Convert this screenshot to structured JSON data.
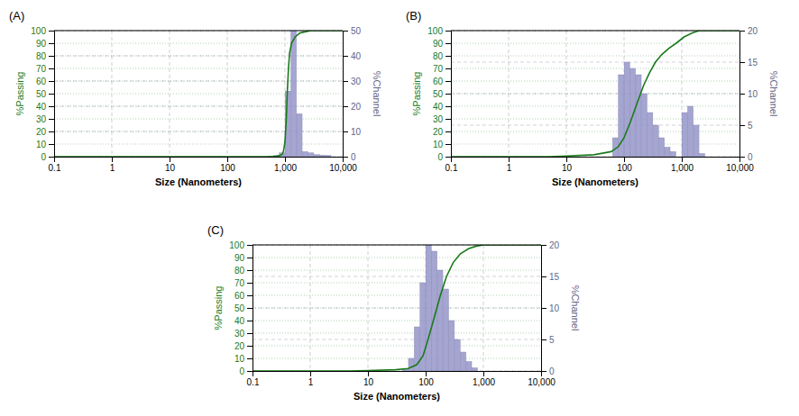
{
  "chart_data": [
    {
      "type": "bar",
      "title": "(A)",
      "xlabel": "Size (Nanometers)",
      "ylabel": "%Passing",
      "y2label": "%Channel",
      "log": "x",
      "grid": true,
      "xlim": [
        0.1,
        10000
      ],
      "xticks": [
        0.1,
        1,
        10,
        100,
        {
          "value": 1000,
          "label": "1,000"
        },
        {
          "value": 10000,
          "label": "10,000"
        }
      ],
      "ylim": [
        0,
        100
      ],
      "yticks": [
        0,
        10,
        20,
        30,
        40,
        50,
        60,
        70,
        80,
        90,
        100
      ],
      "y2lim": [
        0,
        50
      ],
      "y2ticks": [
        0,
        10,
        20,
        30,
        40,
        50
      ],
      "series": [
        {
          "type": "bar",
          "axis": "y2",
          "color": "#9999cc",
          "x": [
            562.341325,
            707.945784,
            891.250938,
            1122.018454,
            1412.537545,
            1778.27941,
            2238.721139,
            2818.382931,
            3548.133892,
            4466.835922,
            5623.413252
          ],
          "values": [
            0.3,
            0.5,
            1.5,
            26,
            50,
            17,
            2.0,
            1.5,
            0.8,
            0.6,
            0.5
          ]
        },
        {
          "type": "line",
          "color": "#1a7a1a",
          "x": [
            0.1,
            200,
            400,
            600,
            700,
            800,
            900,
            950,
            1000,
            1050,
            1100,
            1150,
            1200,
            1300,
            1500,
            1800,
            2200,
            2800,
            3500,
            5000,
            10000
          ],
          "values": [
            0,
            0,
            0,
            0,
            0.3,
            0.8,
            2,
            5,
            12,
            28,
            52,
            70,
            82,
            90,
            95,
            98,
            99,
            100,
            100,
            100,
            100
          ]
        }
      ]
    },
    {
      "type": "bar",
      "title": "(B)",
      "xlabel": "Size (Nanometers)",
      "ylabel": "%Passing",
      "y2label": "%Channel",
      "log": "x",
      "grid": true,
      "xlim": [
        0.1,
        10000
      ],
      "xticks": [
        0.1,
        1,
        10,
        100,
        {
          "value": 1000,
          "label": "1,000"
        },
        {
          "value": 10000,
          "label": "10,000"
        }
      ],
      "ylim": [
        0,
        100
      ],
      "yticks": [
        0,
        10,
        20,
        30,
        40,
        50,
        60,
        70,
        80,
        90,
        100
      ],
      "y2lim": [
        0,
        20
      ],
      "y2ticks": [
        0,
        5,
        10,
        15,
        20
      ],
      "series": [
        {
          "type": "bar",
          "axis": "y2",
          "color": "#9999cc",
          "x": [
            70.794578,
            89.125094,
            112.201845,
            141.253754,
            177.827941,
            223.872114,
            281.838293,
            354.813389,
            446.683592,
            562.341325,
            707.945784,
            1122.018454,
            1412.537545,
            1778.27941,
            2238.721139
          ],
          "values": [
            3.0,
            13,
            15,
            14,
            13,
            10,
            7,
            5,
            3,
            1.5,
            0.8,
            7,
            8,
            5,
            0.5
          ]
        },
        {
          "type": "line",
          "color": "#1a7a1a",
          "x": [
            0.1,
            5,
            10,
            30,
            60,
            80,
            100,
            130,
            170,
            220,
            280,
            350,
            450,
            600,
            800,
            1100,
            1500,
            2000,
            3000,
            10000
          ],
          "values": [
            0,
            0,
            0.5,
            1.5,
            4,
            8,
            15,
            28,
            43,
            57,
            67,
            75,
            81,
            86,
            90,
            95,
            98,
            100,
            100,
            100
          ]
        }
      ]
    },
    {
      "type": "bar",
      "title": "(C)",
      "xlabel": "Size (Nanometers)",
      "ylabel": "%Passing",
      "y2label": "%Channel",
      "log": "x",
      "grid": true,
      "xlim": [
        0.1,
        10000
      ],
      "xticks": [
        0.1,
        1,
        10,
        100,
        {
          "value": 1000,
          "label": "1,000"
        },
        {
          "value": 10000,
          "label": "10,000"
        }
      ],
      "ylim": [
        0,
        100
      ],
      "yticks": [
        0,
        10,
        20,
        30,
        40,
        50,
        60,
        70,
        80,
        90,
        100
      ],
      "y2lim": [
        0,
        20
      ],
      "y2ticks": [
        0,
        5,
        10,
        15,
        20
      ],
      "series": [
        {
          "type": "bar",
          "axis": "y2",
          "color": "#9999cc",
          "x": [
            44.668359,
            56.234133,
            70.794578,
            89.125094,
            112.201845,
            141.253754,
            177.827941,
            223.872114,
            281.838293,
            354.813389,
            446.683592,
            562.341325,
            707.945784
          ],
          "values": [
            0.3,
            2,
            7,
            14,
            20,
            19,
            16,
            13,
            8,
            5,
            3,
            1.5,
            0.5
          ]
        },
        {
          "type": "line",
          "color": "#1a7a1a",
          "x": [
            0.1,
            5,
            10,
            30,
            50,
            70,
            90,
            110,
            140,
            180,
            230,
            300,
            400,
            550,
            750,
            1000,
            10000
          ],
          "values": [
            0,
            0,
            0.3,
            1,
            2,
            5,
            12,
            25,
            42,
            60,
            75,
            86,
            93,
            97,
            99,
            100,
            100
          ]
        }
      ]
    }
  ]
}
